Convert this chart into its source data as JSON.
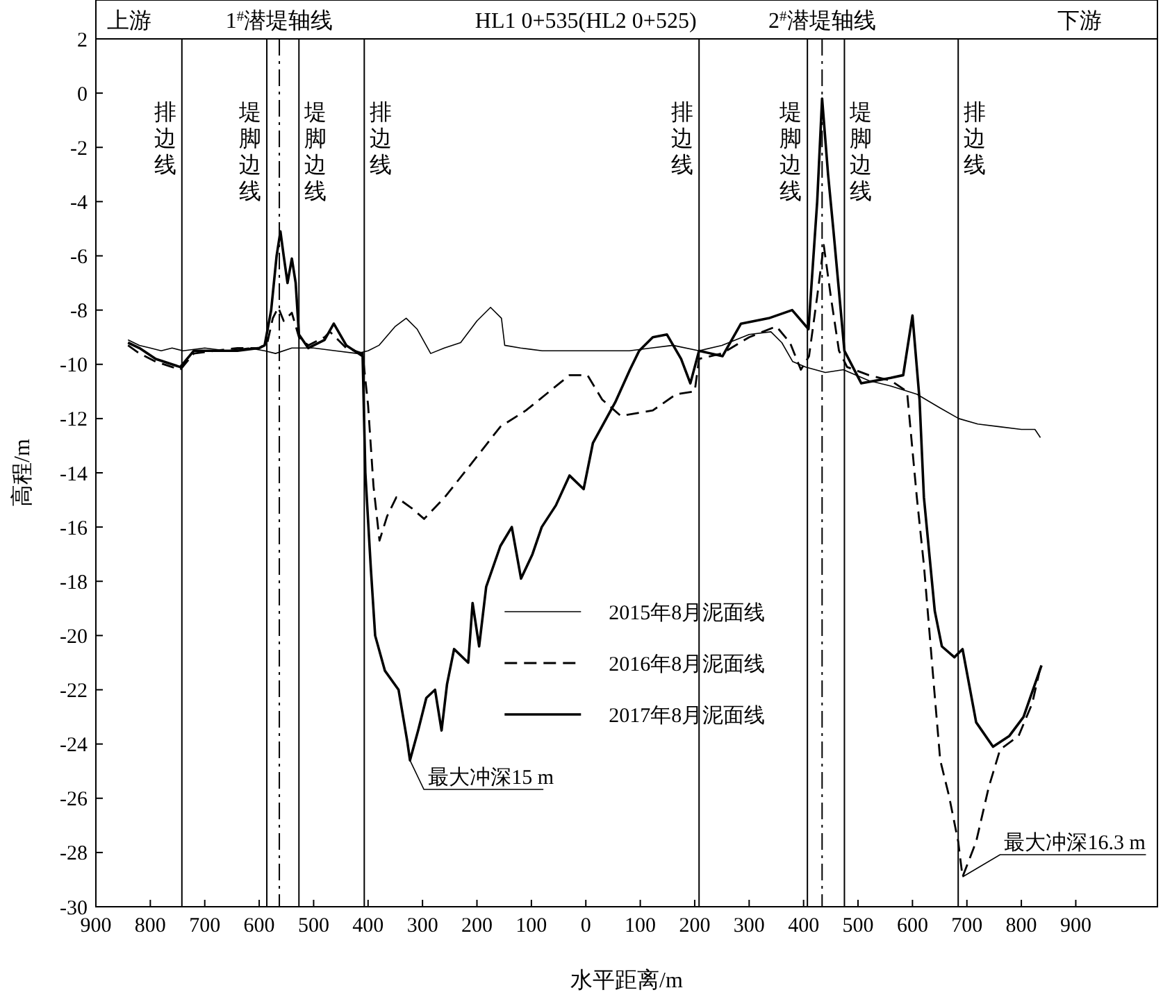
{
  "chart_data": {
    "type": "line",
    "xlabel": "水平距离/m",
    "ylabel": "高程/m",
    "xlim": [
      -900,
      1050
    ],
    "ylim": [
      -30,
      2
    ],
    "xticks": [
      {
        "value": -900,
        "label": "900"
      },
      {
        "value": -800,
        "label": "800"
      },
      {
        "value": -700,
        "label": "700"
      },
      {
        "value": -600,
        "label": "600"
      },
      {
        "value": -500,
        "label": "500"
      },
      {
        "value": -400,
        "label": "400"
      },
      {
        "value": -300,
        "label": "300"
      },
      {
        "value": -200,
        "label": "200"
      },
      {
        "value": -100,
        "label": "100"
      },
      0,
      100,
      200,
      300,
      400,
      500,
      600,
      700,
      800,
      900
    ],
    "yticks": [
      -30,
      -28,
      -26,
      -24,
      -22,
      -20,
      -18,
      -16,
      -14,
      -12,
      -10,
      -8,
      -6,
      -4,
      -2,
      0,
      2
    ],
    "grid": false,
    "legend": "center",
    "marker": "none",
    "series": [
      {
        "name": "2015年8月泥面线",
        "color": "#000000",
        "line_style": "solid",
        "x": [
          -841,
          -820,
          -800,
          -780,
          -760,
          -740,
          -700,
          -660,
          -620,
          -590,
          -570,
          -540,
          -500,
          -460,
          -420,
          -400,
          -380,
          -350,
          -330,
          -310,
          -285,
          -260,
          -230,
          -200,
          -175,
          -155,
          -149,
          -120,
          -80,
          -40,
          0,
          40,
          80,
          120,
          160,
          208,
          250,
          300,
          340,
          360,
          380,
          404,
          440,
          473,
          520,
          560,
          608,
          650,
          685,
          720,
          760,
          800,
          825,
          835
        ],
        "values": [
          -9.1,
          -9.3,
          -9.4,
          -9.5,
          -9.4,
          -9.5,
          -9.4,
          -9.5,
          -9.4,
          -9.5,
          -9.6,
          -9.4,
          -9.4,
          -9.5,
          -9.6,
          -9.5,
          -9.3,
          -8.6,
          -8.3,
          -8.7,
          -9.6,
          -9.4,
          -9.2,
          -8.4,
          -7.9,
          -8.3,
          -9.3,
          -9.4,
          -9.5,
          -9.5,
          -9.5,
          -9.5,
          -9.5,
          -9.4,
          -9.3,
          -9.5,
          -9.3,
          -8.9,
          -8.8,
          -9.2,
          -9.9,
          -10.1,
          -10.3,
          -10.2,
          -10.6,
          -10.8,
          -11.1,
          -11.6,
          -12.0,
          -12.2,
          -12.3,
          -12.4,
          -12.4,
          -12.7
        ]
      },
      {
        "name": "2016年8月泥面线",
        "color": "#000000",
        "line_style": "dashed",
        "x": [
          -841,
          -820,
          -790,
          -760,
          -745,
          -720,
          -680,
          -640,
          -600,
          -585,
          -575,
          -565,
          -555,
          -540,
          -527,
          -510,
          -480,
          -470,
          -440,
          -410,
          -400,
          -390,
          -379,
          -365,
          -348,
          -320,
          -297,
          -259,
          -200,
          -157,
          -110,
          -73,
          -30,
          3,
          30,
          64,
          123,
          166,
          200,
          208,
          250,
          300,
          350,
          375,
          395,
          410,
          425,
          437,
          450,
          465,
          480,
          520,
          560,
          590,
          608,
          621,
          640,
          651,
          667,
          684,
          692,
          717,
          740,
          761,
          795,
          820,
          837
        ],
        "values": [
          -9.3,
          -9.6,
          -9.9,
          -10.1,
          -10.2,
          -9.6,
          -9.5,
          -9.4,
          -9.4,
          -9.2,
          -8.3,
          -7.9,
          -8.4,
          -8.1,
          -9.0,
          -9.3,
          -9.0,
          -8.8,
          -9.4,
          -9.6,
          -11.5,
          -14.5,
          -16.5,
          -15.6,
          -14.9,
          -15.3,
          -15.7,
          -14.9,
          -13.4,
          -12.3,
          -11.7,
          -11.1,
          -10.4,
          -10.4,
          -11.3,
          -11.9,
          -11.7,
          -11.1,
          -11.0,
          -9.8,
          -9.6,
          -9.0,
          -8.6,
          -9.2,
          -10.2,
          -9.7,
          -7.5,
          -5.6,
          -7.5,
          -9.5,
          -10.1,
          -10.4,
          -10.6,
          -11.0,
          -14.9,
          -17.4,
          -22.0,
          -24.6,
          -25.9,
          -27.6,
          -28.9,
          -27.6,
          -25.6,
          -24.2,
          -23.7,
          -22.5,
          -21.0
        ]
      },
      {
        "name": "2017年8月泥面线",
        "color": "#000000",
        "line_style": "solid",
        "x": [
          -841,
          -820,
          -790,
          -760,
          -745,
          -720,
          -680,
          -640,
          -600,
          -590,
          -578,
          -568,
          -561,
          -555,
          -548,
          -540,
          -533,
          -527,
          -510,
          -480,
          -463,
          -440,
          -410,
          -405,
          -395,
          -387,
          -369,
          -344,
          -328,
          -323,
          -308,
          -293,
          -277,
          -265,
          -255,
          -242,
          -216,
          -208,
          -196,
          -183,
          -157,
          -136,
          -119,
          -98,
          -81,
          -55,
          -30,
          -4,
          13,
          54,
          81,
          98,
          123,
          149,
          175,
          192,
          208,
          251,
          285,
          336,
          379,
          409,
          425,
          434,
          445,
          455,
          475,
          506,
          560,
          583,
          600,
          613,
          621,
          641,
          654,
          677,
          692,
          717,
          748,
          778,
          804,
          837
        ],
        "values": [
          -9.2,
          -9.4,
          -9.8,
          -10.0,
          -10.1,
          -9.5,
          -9.5,
          -9.5,
          -9.4,
          -9.3,
          -8.0,
          -6.0,
          -5.1,
          -6.0,
          -7.0,
          -6.1,
          -7.0,
          -8.9,
          -9.4,
          -9.1,
          -8.5,
          -9.3,
          -9.7,
          -14.0,
          -17.5,
          -20.0,
          -21.3,
          -22.0,
          -23.9,
          -24.6,
          -23.5,
          -22.3,
          -22.0,
          -23.5,
          -21.8,
          -20.5,
          -21.0,
          -18.8,
          -20.4,
          -18.2,
          -16.7,
          -16.0,
          -17.9,
          -17.0,
          -16.0,
          -15.2,
          -14.1,
          -14.6,
          -12.9,
          -11.4,
          -10.2,
          -9.5,
          -9.0,
          -8.9,
          -9.8,
          -10.7,
          -9.5,
          -9.7,
          -8.5,
          -8.3,
          -8.0,
          -8.7,
          -4.0,
          -0.2,
          -3.0,
          -5.1,
          -9.5,
          -10.7,
          -10.5,
          -10.4,
          -8.2,
          -11.3,
          -14.9,
          -19.1,
          -20.4,
          -20.8,
          -20.5,
          -23.2,
          -24.1,
          -23.7,
          -23.0,
          -21.1
        ]
      }
    ],
    "ref_lines": [
      {
        "axis": "x",
        "value": -742,
        "label": "排边线",
        "color": "#000000",
        "line_style": "solid"
      },
      {
        "axis": "x",
        "value": -586,
        "label": "堤脚边线",
        "color": "#000000",
        "line_style": "solid"
      },
      {
        "axis": "x",
        "value": -563,
        "label": "1$^{#}$潜堤轴线",
        "color": "#000000",
        "line_style": "dashdot"
      },
      {
        "axis": "x",
        "value": -527,
        "label": "堤脚边线",
        "color": "#000000",
        "line_style": "solid"
      },
      {
        "axis": "x",
        "value": -407,
        "label": "排边线",
        "color": "#000000",
        "line_style": "solid"
      },
      {
        "axis": "x",
        "value": 208,
        "label": "排边线",
        "color": "#000000",
        "line_style": "solid"
      },
      {
        "axis": "x",
        "value": 407,
        "label": "堤脚边线",
        "color": "#000000",
        "line_style": "solid"
      },
      {
        "axis": "x",
        "value": 434,
        "label": "2$^{#}$潜堤轴线",
        "color": "#000000",
        "line_style": "dashdot"
      },
      {
        "axis": "x",
        "value": 475,
        "label": "堤脚边线",
        "color": "#000000",
        "line_style": "solid"
      },
      {
        "axis": "x",
        "value": 684,
        "label": "排边线",
        "color": "#000000",
        "line_style": "solid"
      }
    ],
    "annotations": [
      "上游",
      "HL1 0+535(HL2 0+525)",
      "下游",
      {
        "text": "最大冲深15 m",
        "x": -323,
        "y": -24.6
      },
      {
        "text": "最大冲深16.3 m",
        "x": 692,
        "y": -28.9
      }
    ]
  }
}
